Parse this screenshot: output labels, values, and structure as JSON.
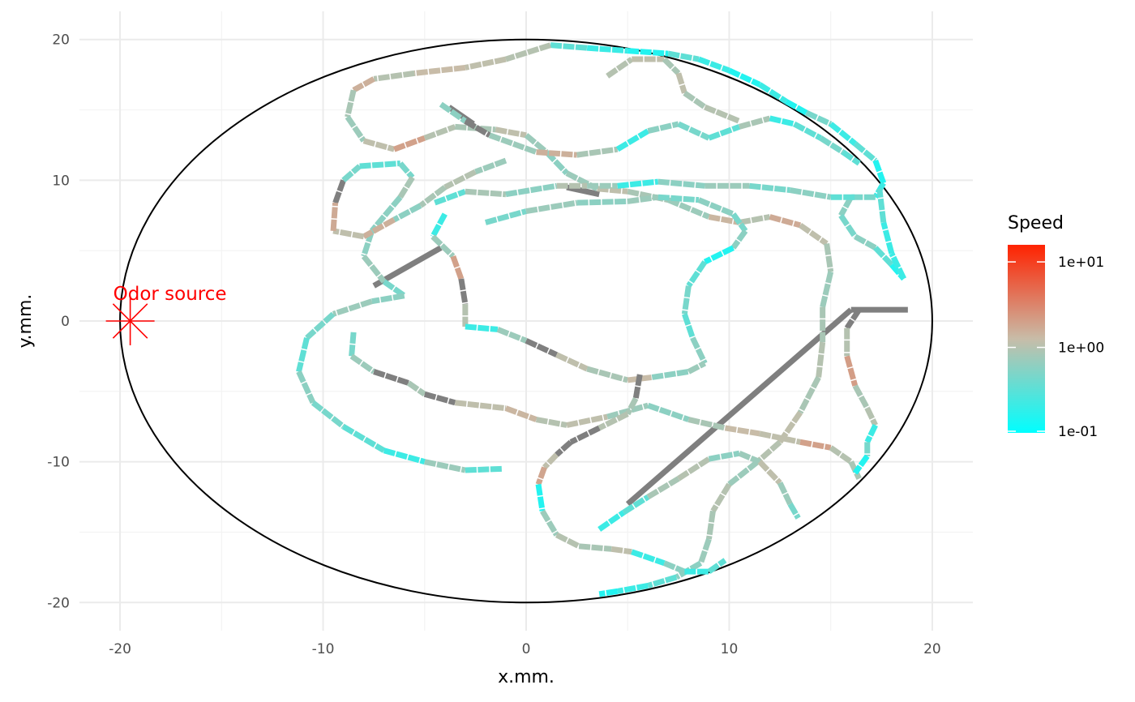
{
  "chart_data": {
    "type": "line",
    "title": "",
    "xlabel": "x.mm.",
    "ylabel": "y.mm.",
    "xlim": [
      -22,
      22
    ],
    "ylim": [
      -22,
      22
    ],
    "x_ticks": [
      -20,
      -10,
      0,
      10,
      20
    ],
    "y_ticks": [
      -20,
      -10,
      0,
      10,
      20
    ],
    "x_tick_labels": [
      "-20",
      "-10",
      "0",
      "10",
      "20"
    ],
    "y_tick_labels": [
      "-20",
      "-10",
      "0",
      "10",
      "20"
    ],
    "grid": true,
    "arena": {
      "shape": "ellipse",
      "center": [
        0,
        0
      ],
      "rx": 20,
      "ry": 20,
      "color": "#000000"
    },
    "annotation": {
      "text": "Odor source",
      "x": -19.5,
      "y": 0,
      "color": "#ff0000",
      "marker": "asterisk"
    },
    "legend": {
      "title": "Speed",
      "placement": "right",
      "scale": "log10",
      "labels": [
        "1e+01",
        "1e+00",
        "1e-01"
      ],
      "values": [
        10,
        1,
        0.1
      ],
      "colors": {
        "low": "#00ffff",
        "mid": "#c8bca8",
        "high": "#ff2200"
      },
      "na_color": "#7f7f7f"
    },
    "series": [
      {
        "speed_default": 0.35,
        "points": [
          [
            1.2,
            19.6,
            0.3
          ],
          [
            3.0,
            19.4,
            0.2
          ],
          [
            5.0,
            19.2,
            0.15
          ],
          [
            7.0,
            19.0,
            0.3
          ],
          [
            8.5,
            18.6,
            0.2
          ],
          [
            10.0,
            17.8,
            0.15
          ],
          [
            11.5,
            16.8,
            0.2
          ],
          [
            12.8,
            15.6,
            0.15
          ],
          [
            13.8,
            14.8,
            0.4
          ],
          [
            15.0,
            14.0,
            0.2
          ],
          [
            16.2,
            12.6,
            0.3
          ],
          [
            17.2,
            11.4,
            0.15
          ],
          [
            17.6,
            9.8,
            0.2
          ],
          [
            17.2,
            8.8,
            0.4
          ],
          [
            16.0,
            8.8,
            0.5
          ],
          [
            15.5,
            7.5,
            0.4
          ],
          [
            16.2,
            6.0,
            0.5
          ],
          [
            17.2,
            5.2,
            0.3
          ],
          [
            18.0,
            4.0,
            0.15
          ],
          [
            18.6,
            3.0,
            0.2
          ],
          [
            18.0,
            4.8,
            0.2
          ],
          [
            17.6,
            7.0,
            0.3
          ],
          [
            17.4,
            9.4,
            0.2
          ]
        ]
      },
      {
        "speed_default": 0.9,
        "points": [
          [
            1.2,
            19.6,
            0.8
          ],
          [
            -1.0,
            18.6,
            0.9
          ],
          [
            -3.0,
            18.0,
            1.0
          ],
          [
            -5.5,
            17.6,
            0.8
          ],
          [
            -7.5,
            17.2,
            1.2
          ],
          [
            -8.5,
            16.4,
            0.7
          ],
          [
            -8.8,
            14.5,
            0.6
          ],
          [
            -8.0,
            12.8,
            0.9
          ],
          [
            -6.5,
            12.2,
            1.5
          ],
          [
            -5.0,
            13.0,
            0.8
          ],
          [
            -3.5,
            13.8,
            0.7
          ],
          [
            -1.5,
            13.6,
            0.9
          ],
          [
            0.0,
            13.2,
            0.6
          ],
          [
            1.0,
            12.0,
            0.5
          ],
          [
            2.0,
            10.5,
            0.6
          ],
          [
            3.5,
            9.4,
            0.9
          ],
          [
            5.0,
            9.2,
            0.7
          ],
          [
            7.0,
            8.6,
            0.6
          ],
          [
            9.0,
            7.4,
            1.1
          ],
          [
            10.5,
            7.0,
            0.8
          ],
          [
            12.0,
            7.4,
            1.3
          ],
          [
            13.5,
            6.8,
            0.9
          ],
          [
            14.8,
            5.5,
            0.7
          ],
          [
            15.0,
            3.5,
            0.6
          ],
          [
            14.6,
            1.0,
            0.7
          ],
          [
            14.6,
            -1.5,
            0.8
          ],
          [
            14.4,
            -4.0,
            0.7
          ],
          [
            13.5,
            -6.5,
            0.9
          ],
          [
            12.5,
            -8.6,
            0.8
          ],
          [
            11.4,
            -10.0,
            0.6
          ],
          [
            10.0,
            -11.6,
            0.8
          ],
          [
            9.2,
            -13.5,
            0.7
          ],
          [
            9.0,
            -15.5,
            0.6
          ],
          [
            8.6,
            -17.2,
            0.5
          ],
          [
            7.4,
            -18.2,
            0.3
          ],
          [
            6.0,
            -18.8,
            0.2
          ],
          [
            4.5,
            -19.2,
            0.15
          ],
          [
            3.6,
            -19.4,
            0.1
          ]
        ]
      },
      {
        "speed_default": 0.6,
        "points": [
          [
            -4.2,
            15.4,
            0.5
          ],
          [
            -3.0,
            14.2,
            null
          ],
          [
            -1.8,
            13.2,
            0.6
          ],
          [
            0.5,
            12.0,
            1.2
          ],
          [
            2.5,
            11.8,
            0.7
          ],
          [
            4.5,
            12.2,
            0.2
          ],
          [
            6.0,
            13.5,
            0.5
          ],
          [
            7.5,
            14.0,
            0.4
          ],
          [
            9.0,
            13.0,
            0.3
          ],
          [
            10.5,
            13.8,
            0.7
          ],
          [
            12.0,
            14.4,
            0.2
          ],
          [
            13.2,
            14.0,
            0.3
          ],
          [
            14.5,
            13.0,
            0.4
          ],
          [
            15.6,
            12.0,
            0.3
          ],
          [
            16.4,
            11.2,
            0.2
          ]
        ]
      },
      {
        "speed_default": 0.5,
        "points": [
          [
            -9.4,
            8.4,
            null
          ],
          [
            -9.0,
            10.0,
            0.4
          ],
          [
            -8.2,
            11.0,
            0.3
          ],
          [
            -6.2,
            11.2,
            0.4
          ],
          [
            -5.6,
            10.2,
            0.7
          ],
          [
            -6.2,
            8.8,
            0.5
          ],
          [
            -7.6,
            6.4,
            0.5
          ],
          [
            -8.0,
            4.6,
            0.6
          ],
          [
            -7.0,
            2.8,
            0.4
          ],
          [
            -6.0,
            1.8,
            0.5
          ],
          [
            -7.6,
            1.4,
            0.6
          ],
          [
            -9.5,
            0.5,
            0.4
          ],
          [
            -10.8,
            -1.2,
            0.3
          ],
          [
            -11.2,
            -3.6,
            0.5
          ],
          [
            -10.5,
            -5.8,
            0.4
          ],
          [
            -9.0,
            -7.5,
            0.3
          ],
          [
            -7.0,
            -9.2,
            0.2
          ],
          [
            -5.0,
            -10.0,
            0.6
          ],
          [
            -3.0,
            -10.6,
            0.3
          ],
          [
            -1.2,
            -10.5,
            0.4
          ]
        ]
      },
      {
        "speed_default": 0.7,
        "points": [
          [
            -1.0,
            11.4,
            0.6
          ],
          [
            -2.5,
            10.6,
            0.8
          ],
          [
            -4.0,
            9.5,
            0.7
          ],
          [
            -5.2,
            8.2,
            0.5
          ],
          [
            -6.5,
            7.2,
            1.2
          ],
          [
            -8.0,
            6.0,
            0.9
          ],
          [
            -9.5,
            6.4,
            1.3
          ],
          [
            -9.4,
            8.4,
            null
          ]
        ]
      },
      {
        "speed_default": 0.55,
        "points": [
          [
            -2.0,
            7.0,
            0.4
          ],
          [
            0.0,
            7.8,
            0.6
          ],
          [
            2.5,
            8.4,
            0.5
          ],
          [
            5.0,
            8.5,
            0.6
          ],
          [
            6.5,
            8.8,
            0.4
          ],
          [
            8.5,
            8.6,
            0.5
          ],
          [
            10.2,
            7.6,
            0.4
          ],
          [
            10.8,
            6.4,
            0.5
          ],
          [
            10.2,
            5.2,
            0.15
          ],
          [
            8.8,
            4.2,
            0.3
          ],
          [
            8.0,
            2.5,
            0.4
          ],
          [
            7.8,
            0.5,
            0.3
          ],
          [
            8.2,
            -1.2,
            0.5
          ],
          [
            8.8,
            -3.0,
            null
          ]
        ]
      },
      {
        "speed_default": 0.8,
        "points": [
          [
            -4.0,
            7.6,
            0.2
          ],
          [
            -4.6,
            6.0,
            0.6
          ],
          [
            -3.6,
            4.6,
            1.5
          ],
          [
            -3.2,
            3.0,
            null
          ],
          [
            -3.0,
            1.2,
            0.8
          ],
          [
            -3.0,
            -0.4,
            0.2
          ],
          [
            -1.4,
            -0.6,
            0.6
          ],
          [
            0.0,
            -1.4,
            null
          ],
          [
            1.5,
            -2.4,
            0.9
          ],
          [
            3.0,
            -3.4,
            0.7
          ],
          [
            5.0,
            -4.2,
            1.0
          ],
          [
            6.2,
            -4.0,
            0.5
          ],
          [
            8.0,
            -3.6,
            0.6
          ],
          [
            8.8,
            -3.0,
            null
          ]
        ]
      },
      {
        "speed_default": 0.75,
        "points": [
          [
            -8.5,
            -0.8,
            0.4
          ],
          [
            -8.6,
            -2.5,
            0.6
          ],
          [
            -7.5,
            -3.6,
            null
          ],
          [
            -5.8,
            -4.4,
            0.7
          ],
          [
            -5.0,
            -5.2,
            null
          ],
          [
            -3.5,
            -5.8,
            0.9
          ],
          [
            -1.0,
            -6.2,
            1.1
          ],
          [
            0.5,
            -7.0,
            0.8
          ],
          [
            2.0,
            -7.4,
            0.9
          ],
          [
            4.0,
            -6.8,
            0.6
          ],
          [
            6.0,
            -6.0,
            0.5
          ],
          [
            8.0,
            -7.0,
            0.7
          ],
          [
            9.8,
            -7.6,
            1.0
          ],
          [
            11.5,
            -8.0,
            0.9
          ],
          [
            13.5,
            -8.6,
            1.5
          ],
          [
            15.0,
            -9.0,
            0.8
          ],
          [
            16.0,
            -10.0,
            0.7
          ],
          [
            16.4,
            -11.2,
            0.3
          ]
        ]
      },
      {
        "speed_default": 0.7,
        "points": [
          [
            5.6,
            -3.8,
            null
          ],
          [
            5.4,
            -5.5,
            0.7
          ],
          [
            5.0,
            -6.6,
            0.8
          ],
          [
            3.6,
            -7.6,
            null
          ],
          [
            2.2,
            -8.6,
            null
          ],
          [
            1.5,
            -9.5,
            0.9
          ],
          [
            0.9,
            -10.4,
            1.4
          ],
          [
            0.6,
            -11.6,
            0.15
          ],
          [
            0.8,
            -13.5,
            0.6
          ],
          [
            1.5,
            -15.2,
            0.8
          ],
          [
            2.6,
            -16.0,
            0.7
          ],
          [
            4.2,
            -16.2,
            0.9
          ],
          [
            5.2,
            -16.4,
            0.2
          ],
          [
            6.8,
            -17.2,
            0.5
          ],
          [
            7.8,
            -17.8,
            0.2
          ],
          [
            9.0,
            -17.8,
            0.3
          ],
          [
            9.8,
            -17.0,
            null
          ]
        ]
      },
      {
        "speed_default": 0.7,
        "points": [
          [
            16.4,
            0.8,
            null
          ],
          [
            15.8,
            -0.5,
            0.8
          ],
          [
            15.8,
            -2.5,
            1.6
          ],
          [
            16.2,
            -4.6,
            0.7
          ],
          [
            16.8,
            -6.2,
            0.8
          ],
          [
            17.2,
            -7.4,
            0.2
          ],
          [
            16.8,
            -8.6,
            0.4
          ],
          [
            16.8,
            -9.6,
            0.15
          ],
          [
            16.2,
            -10.8,
            0.5
          ]
        ]
      },
      {
        "speed_default": 0.6,
        "points": [
          [
            3.6,
            -14.8,
            0.2
          ],
          [
            4.8,
            -13.6,
            0.3
          ],
          [
            6.0,
            -12.5,
            0.7
          ],
          [
            7.5,
            -11.2,
            0.8
          ],
          [
            9.0,
            -9.8,
            0.5
          ],
          [
            10.5,
            -9.4,
            0.6
          ],
          [
            11.5,
            -10.0,
            0.9
          ],
          [
            12.5,
            -11.5,
            0.6
          ],
          [
            13.0,
            -13.0,
            0.4
          ],
          [
            13.4,
            -14.0,
            0.3
          ]
        ]
      },
      {
        "speed_default": 0.6,
        "points": [
          [
            -4.5,
            8.4,
            0.3
          ],
          [
            -3.0,
            9.2,
            0.7
          ],
          [
            -1.0,
            9.0,
            0.5
          ],
          [
            1.5,
            9.6,
            0.8
          ],
          [
            3.0,
            9.6,
            0.6
          ],
          [
            4.5,
            9.6,
            0.2
          ],
          [
            6.5,
            9.9,
            0.5
          ],
          [
            8.8,
            9.6,
            0.6
          ],
          [
            11.0,
            9.6,
            0.4
          ],
          [
            13.0,
            9.3,
            0.5
          ],
          [
            15.0,
            8.8,
            0.3
          ],
          [
            16.2,
            8.8,
            0.4
          ]
        ]
      },
      {
        "speed_default": 0.8,
        "points": [
          [
            4.0,
            17.4,
            0.8
          ],
          [
            5.2,
            18.6,
            0.9
          ],
          [
            6.8,
            18.6,
            0.7
          ],
          [
            7.5,
            17.6,
            0.9
          ],
          [
            7.8,
            16.2,
            0.7
          ],
          [
            8.8,
            15.2,
            0.8
          ],
          [
            10.5,
            14.2,
            0.7
          ]
        ]
      }
    ],
    "na_segments": [
      [
        [
          5.0,
          -13.0
        ],
        [
          16.0,
          0.8
        ]
      ],
      [
        [
          16.0,
          0.8
        ],
        [
          18.8,
          0.8
        ]
      ],
      [
        [
          -4.2,
          5.2
        ],
        [
          -7.5,
          2.5
        ]
      ],
      [
        [
          -3.8,
          15.2
        ],
        [
          -2.6,
          14.0
        ]
      ],
      [
        [
          2.0,
          9.5
        ],
        [
          3.6,
          9.0
        ]
      ]
    ]
  }
}
